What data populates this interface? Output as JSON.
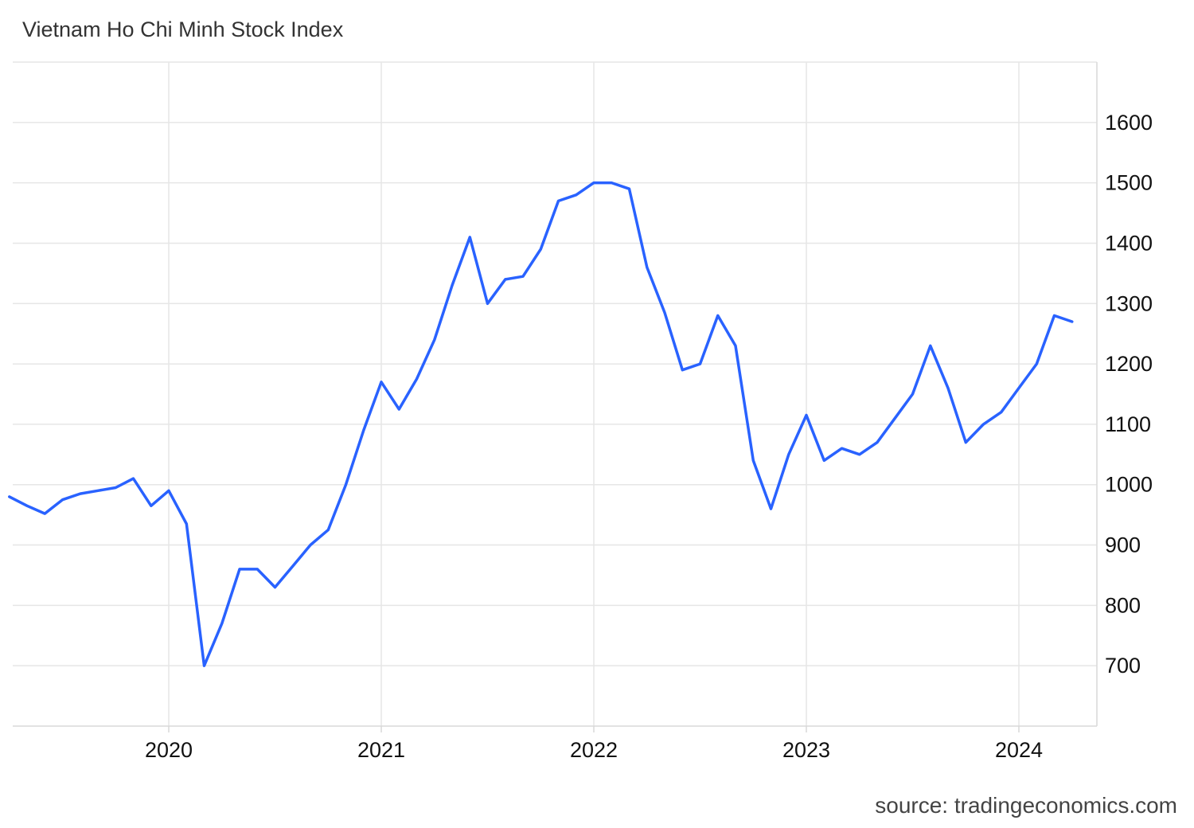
{
  "chart_data": {
    "type": "line",
    "title": "Vietnam Ho Chi Minh Stock Index",
    "source": "source: tradingeconomics.com",
    "line_color": "#2962ff",
    "grid": true,
    "xlabel": "",
    "ylabel": "",
    "x_range": [
      "2019-04",
      "2024-04"
    ],
    "ylim": [
      600,
      1700
    ],
    "y_ticks": [
      700,
      800,
      900,
      1000,
      1100,
      1200,
      1300,
      1400,
      1500,
      1600
    ],
    "x_ticks": [
      {
        "label": "2020",
        "date": "2020-01"
      },
      {
        "label": "2021",
        "date": "2021-01"
      },
      {
        "label": "2022",
        "date": "2022-01"
      },
      {
        "label": "2023",
        "date": "2023-01"
      },
      {
        "label": "2024",
        "date": "2024-01"
      }
    ],
    "series": [
      {
        "x": [
          "2019-04",
          "2019-05",
          "2019-06",
          "2019-07",
          "2019-08",
          "2019-09",
          "2019-10",
          "2019-11",
          "2019-12",
          "2020-01",
          "2020-02",
          "2020-03",
          "2020-04",
          "2020-05",
          "2020-06",
          "2020-07",
          "2020-08",
          "2020-09",
          "2020-10",
          "2020-11",
          "2020-12",
          "2021-01",
          "2021-02",
          "2021-03",
          "2021-04",
          "2021-05",
          "2021-06",
          "2021-07",
          "2021-08",
          "2021-09",
          "2021-10",
          "2021-11",
          "2021-12",
          "2022-01",
          "2022-02",
          "2022-03",
          "2022-04",
          "2022-05",
          "2022-06",
          "2022-07",
          "2022-08",
          "2022-09",
          "2022-10",
          "2022-11",
          "2022-12",
          "2023-01",
          "2023-02",
          "2023-03",
          "2023-04",
          "2023-05",
          "2023-06",
          "2023-07",
          "2023-08",
          "2023-09",
          "2023-10",
          "2023-11",
          "2023-12",
          "2024-01",
          "2024-02",
          "2024-03",
          "2024-04"
        ],
        "values": [
          980,
          965,
          952,
          975,
          985,
          990,
          995,
          1010,
          965,
          990,
          935,
          700,
          770,
          860,
          860,
          830,
          865,
          900,
          925,
          1000,
          1090,
          1170,
          1125,
          1175,
          1240,
          1330,
          1410,
          1300,
          1340,
          1345,
          1390,
          1470,
          1480,
          1500,
          1500,
          1490,
          1360,
          1285,
          1190,
          1200,
          1280,
          1230,
          1040,
          960,
          1050,
          1115,
          1040,
          1060,
          1050,
          1070,
          1110,
          1150,
          1230,
          1160,
          1070,
          1100,
          1120,
          1160,
          1200,
          1280,
          1270
        ]
      }
    ]
  }
}
